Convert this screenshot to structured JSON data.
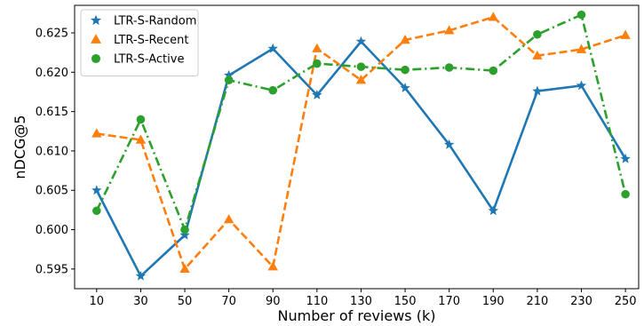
{
  "chart_data": {
    "type": "line",
    "xlabel": "Number of reviews (k)",
    "ylabel": "nDCG@5",
    "x": [
      10,
      30,
      50,
      70,
      90,
      110,
      130,
      150,
      170,
      190,
      210,
      230,
      250
    ],
    "x_tick_labels": [
      "10",
      "30",
      "50",
      "70",
      "90",
      "110",
      "130",
      "150",
      "170",
      "190",
      "210",
      "230",
      "250"
    ],
    "y_ticks": [
      0.595,
      0.6,
      0.605,
      0.61,
      0.615,
      0.62,
      0.625
    ],
    "y_tick_labels": [
      "0.595",
      "0.600",
      "0.605",
      "0.610",
      "0.615",
      "0.620",
      "0.625"
    ],
    "ylim": [
      0.5925,
      0.6285
    ],
    "xlim": [
      0,
      256
    ],
    "grid": false,
    "legend_position": "top-left",
    "series": [
      {
        "name": "LTR-S-Random",
        "color": "#1f77b4",
        "marker": "star",
        "line_style": "solid",
        "values": [
          0.605,
          0.5941,
          0.5993,
          0.6196,
          0.623,
          0.6171,
          0.6239,
          0.618,
          0.6108,
          0.6024,
          0.6176,
          0.6183,
          0.609
        ]
      },
      {
        "name": "LTR-S-Recent",
        "color": "#ff7f0e",
        "marker": "triangle",
        "line_style": "dashed",
        "values": [
          0.6122,
          0.6114,
          0.595,
          0.6013,
          0.5953,
          0.623,
          0.619,
          0.6241,
          0.6253,
          0.627,
          0.6221,
          0.6229,
          0.6247
        ]
      },
      {
        "name": "LTR-S-Active",
        "color": "#2ca02c",
        "marker": "circle",
        "line_style": "dashdot",
        "values": [
          0.6024,
          0.614,
          0.6,
          0.619,
          0.6177,
          0.6211,
          0.6207,
          0.6203,
          0.6206,
          0.6202,
          0.6248,
          0.6273,
          0.6045
        ]
      }
    ]
  }
}
